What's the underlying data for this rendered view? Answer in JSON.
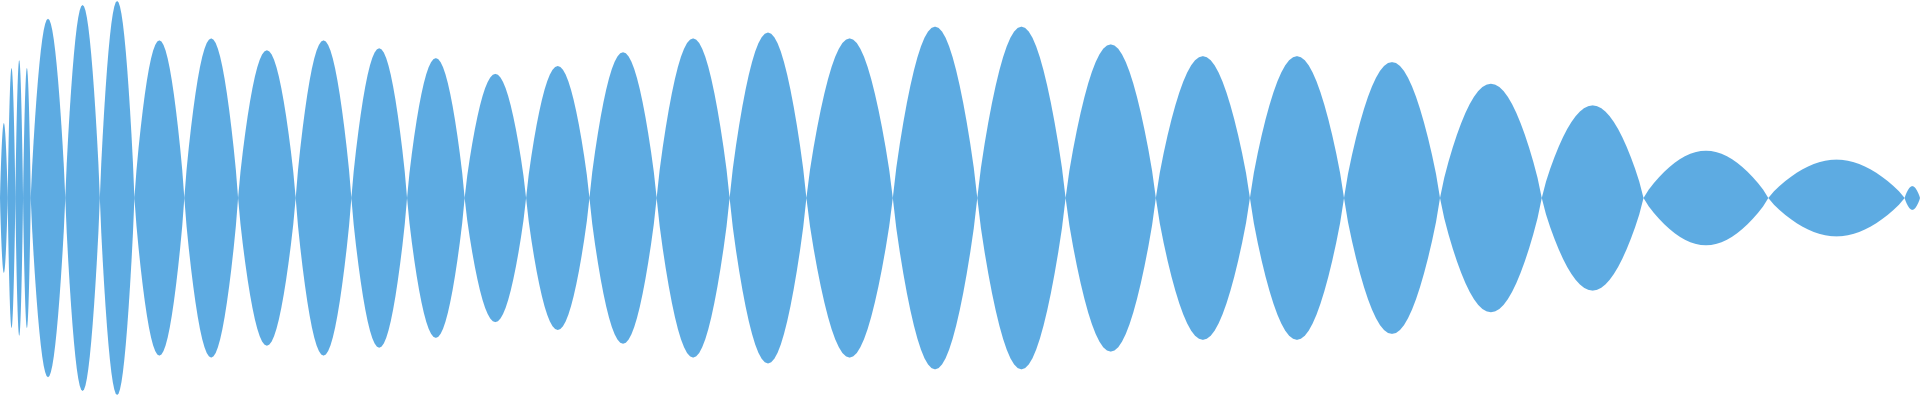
{
  "chart_data": {
    "type": "area",
    "title": "",
    "xlabel": "",
    "ylabel": "",
    "grid": false,
    "legend": "none",
    "ylim": [
      -1,
      1
    ],
    "fill_color": "#5DABE2",
    "background_color": "#FFFFFF",
    "series": [
      {
        "lobes": [
          {
            "start": 0.0,
            "end": 0.004,
            "amp": 0.38
          },
          {
            "start": 0.004,
            "end": 0.008,
            "amp": 0.66
          },
          {
            "start": 0.008,
            "end": 0.012,
            "amp": 0.7
          },
          {
            "start": 0.012,
            "end": 0.016,
            "amp": 0.66
          },
          {
            "start": 0.016,
            "end": 0.034,
            "amp": 0.91
          },
          {
            "start": 0.034,
            "end": 0.052,
            "amp": 0.98
          },
          {
            "start": 0.052,
            "end": 0.07,
            "amp": 1.0
          },
          {
            "start": 0.07,
            "end": 0.096,
            "amp": 0.8
          },
          {
            "start": 0.096,
            "end": 0.124,
            "amp": 0.81
          },
          {
            "start": 0.124,
            "end": 0.154,
            "amp": 0.75
          },
          {
            "start": 0.154,
            "end": 0.183,
            "amp": 0.8
          },
          {
            "start": 0.183,
            "end": 0.212,
            "amp": 0.76
          },
          {
            "start": 0.212,
            "end": 0.242,
            "amp": 0.71
          },
          {
            "start": 0.242,
            "end": 0.274,
            "amp": 0.63
          },
          {
            "start": 0.274,
            "end": 0.307,
            "amp": 0.67
          },
          {
            "start": 0.307,
            "end": 0.342,
            "amp": 0.74
          },
          {
            "start": 0.342,
            "end": 0.38,
            "amp": 0.81
          },
          {
            "start": 0.38,
            "end": 0.42,
            "amp": 0.84
          },
          {
            "start": 0.42,
            "end": 0.465,
            "amp": 0.81
          },
          {
            "start": 0.465,
            "end": 0.509,
            "amp": 0.87
          },
          {
            "start": 0.509,
            "end": 0.555,
            "amp": 0.87
          },
          {
            "start": 0.555,
            "end": 0.602,
            "amp": 0.78
          },
          {
            "start": 0.602,
            "end": 0.651,
            "amp": 0.72
          },
          {
            "start": 0.651,
            "end": 0.7,
            "amp": 0.72
          },
          {
            "start": 0.7,
            "end": 0.75,
            "amp": 0.69
          },
          {
            "start": 0.75,
            "end": 0.803,
            "amp": 0.58
          },
          {
            "start": 0.803,
            "end": 0.856,
            "amp": 0.47
          },
          {
            "start": 0.856,
            "end": 0.921,
            "amp": 0.24
          },
          {
            "start": 0.921,
            "end": 0.992,
            "amp": 0.195
          },
          {
            "start": 0.992,
            "end": 1.0,
            "amp": 0.06
          }
        ]
      }
    ]
  }
}
